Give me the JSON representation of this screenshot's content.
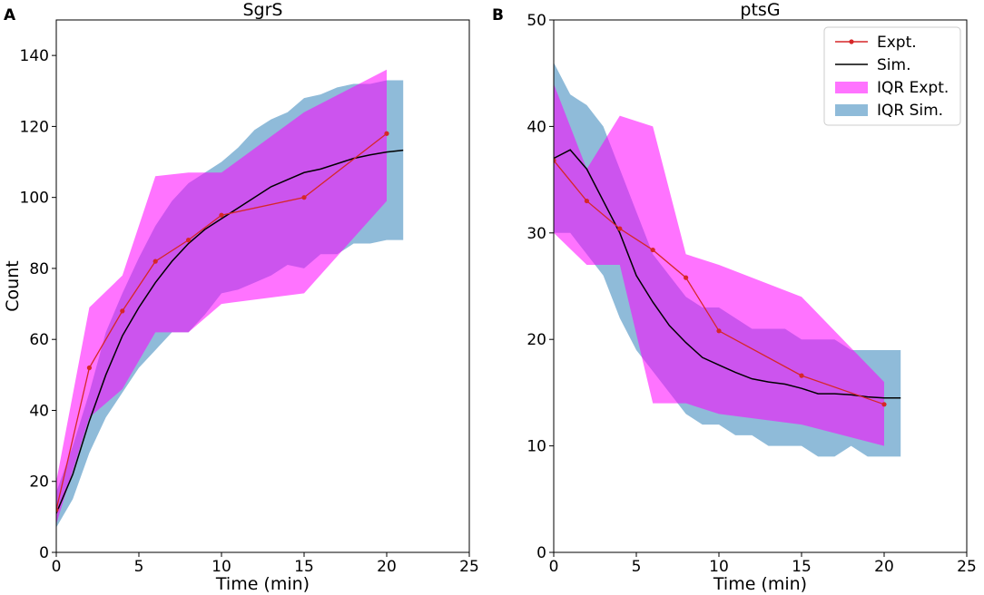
{
  "figure": {
    "legend": {
      "placement": "top-right of panel B",
      "entries": [
        {
          "label": "Expt.",
          "color": "#d62728",
          "kind": "line-marker"
        },
        {
          "label": "Sim.",
          "color": "#000000",
          "kind": "line"
        },
        {
          "label": "IQR Expt.",
          "color": "#ff00ff",
          "kind": "band"
        },
        {
          "label": "IQR Sim.",
          "color": "#1f77b4",
          "kind": "band"
        }
      ]
    },
    "colors": {
      "expt": "#d62728",
      "sim": "#000000",
      "iqr_expt": "#ff00ff",
      "iqr_sim": "#1f77b4"
    }
  },
  "chart_data": [
    {
      "panel": "A",
      "type": "line",
      "title": "SgrS",
      "xlabel": "Time (min)",
      "ylabel": "Count",
      "xlim": [
        0,
        25
      ],
      "ylim": [
        0,
        150
      ],
      "xticks": [
        0,
        5,
        10,
        15,
        20,
        25
      ],
      "yticks": [
        0,
        20,
        40,
        60,
        80,
        100,
        120,
        140
      ],
      "grid": false,
      "series": [
        {
          "name": "IQR Sim.",
          "kind": "band",
          "x": [
            0,
            1,
            2,
            3,
            4,
            5,
            6,
            7,
            8,
            9,
            10,
            11,
            12,
            13,
            14,
            15,
            16,
            17,
            18,
            19,
            20,
            21
          ],
          "lower": [
            7,
            15,
            28,
            38,
            45,
            52,
            57,
            62,
            62,
            67,
            73,
            74,
            76,
            78,
            81,
            80,
            84,
            84,
            87,
            87,
            88,
            88
          ],
          "upper": [
            17,
            30,
            45,
            62,
            73,
            83,
            92,
            99,
            104,
            107,
            110,
            114,
            119,
            122,
            124,
            128,
            129,
            131,
            132,
            132,
            133,
            133
          ]
        },
        {
          "name": "IQR Expt.",
          "kind": "band",
          "x": [
            0,
            2,
            4,
            6,
            8,
            10,
            15,
            20
          ],
          "lower": [
            8,
            38,
            46,
            62,
            62,
            70,
            73,
            99
          ],
          "upper": [
            20,
            69,
            78,
            106,
            107,
            107,
            124,
            136
          ]
        },
        {
          "name": "Sim.",
          "kind": "line",
          "x": [
            0,
            1,
            2,
            3,
            4,
            5,
            6,
            7,
            8,
            9,
            10,
            11,
            12,
            13,
            14,
            15,
            16,
            17,
            18,
            19,
            20,
            21
          ],
          "values": [
            11,
            22,
            37,
            50,
            61,
            69,
            76,
            82,
            87,
            91,
            94,
            97,
            100,
            103,
            105,
            107,
            108,
            109.5,
            111,
            112,
            112.8,
            113.3
          ]
        },
        {
          "name": "Expt.",
          "kind": "line-marker",
          "x": [
            0,
            2,
            4,
            6,
            8,
            10,
            15,
            20
          ],
          "values": [
            12,
            52,
            68,
            82,
            88,
            95,
            100,
            118
          ]
        }
      ]
    },
    {
      "panel": "B",
      "type": "line",
      "title": "ptsG",
      "xlabel": "Time (min)",
      "ylabel": "",
      "xlim": [
        0,
        25
      ],
      "ylim": [
        0,
        50
      ],
      "xticks": [
        0,
        5,
        10,
        15,
        20,
        25
      ],
      "yticks": [
        0,
        10,
        20,
        30,
        40,
        50
      ],
      "grid": false,
      "series": [
        {
          "name": "IQR Sim.",
          "kind": "band",
          "x": [
            0,
            1,
            2,
            3,
            4,
            5,
            6,
            7,
            8,
            9,
            10,
            11,
            12,
            13,
            14,
            15,
            16,
            17,
            18,
            19,
            20,
            21
          ],
          "lower": [
            30,
            30,
            28,
            26,
            22,
            19,
            17,
            15,
            13,
            12,
            12,
            11,
            11,
            10,
            10,
            10,
            9,
            9,
            10,
            9,
            9,
            9
          ],
          "upper": [
            46,
            43,
            42,
            40,
            36,
            32,
            28,
            26,
            24,
            23,
            23,
            22,
            21,
            21,
            21,
            20,
            20,
            20,
            19,
            19,
            19,
            19
          ]
        },
        {
          "name": "IQR Expt.",
          "kind": "band",
          "x": [
            0,
            2,
            4,
            6,
            8,
            10,
            15,
            20
          ],
          "lower": [
            30,
            27,
            27,
            14,
            14,
            13,
            12,
            10
          ],
          "upper": [
            44,
            36,
            41,
            40,
            28,
            27,
            24,
            16
          ]
        },
        {
          "name": "Sim.",
          "kind": "line",
          "x": [
            0,
            1,
            2,
            3,
            4,
            5,
            6,
            7,
            8,
            9,
            10,
            11,
            12,
            13,
            14,
            15,
            16,
            17,
            18,
            19,
            20,
            21
          ],
          "values": [
            37,
            37.8,
            36,
            33,
            30,
            26,
            23.5,
            21.3,
            19.7,
            18.3,
            17.6,
            16.9,
            16.3,
            16,
            15.8,
            15.4,
            14.9,
            14.9,
            14.8,
            14.6,
            14.5,
            14.5
          ]
        },
        {
          "name": "Expt.",
          "kind": "line-marker",
          "x": [
            0,
            2,
            4,
            6,
            8,
            10,
            15,
            20
          ],
          "values": [
            36.8,
            33,
            30.4,
            28.4,
            25.8,
            20.8,
            16.6,
            13.9
          ]
        }
      ]
    }
  ]
}
